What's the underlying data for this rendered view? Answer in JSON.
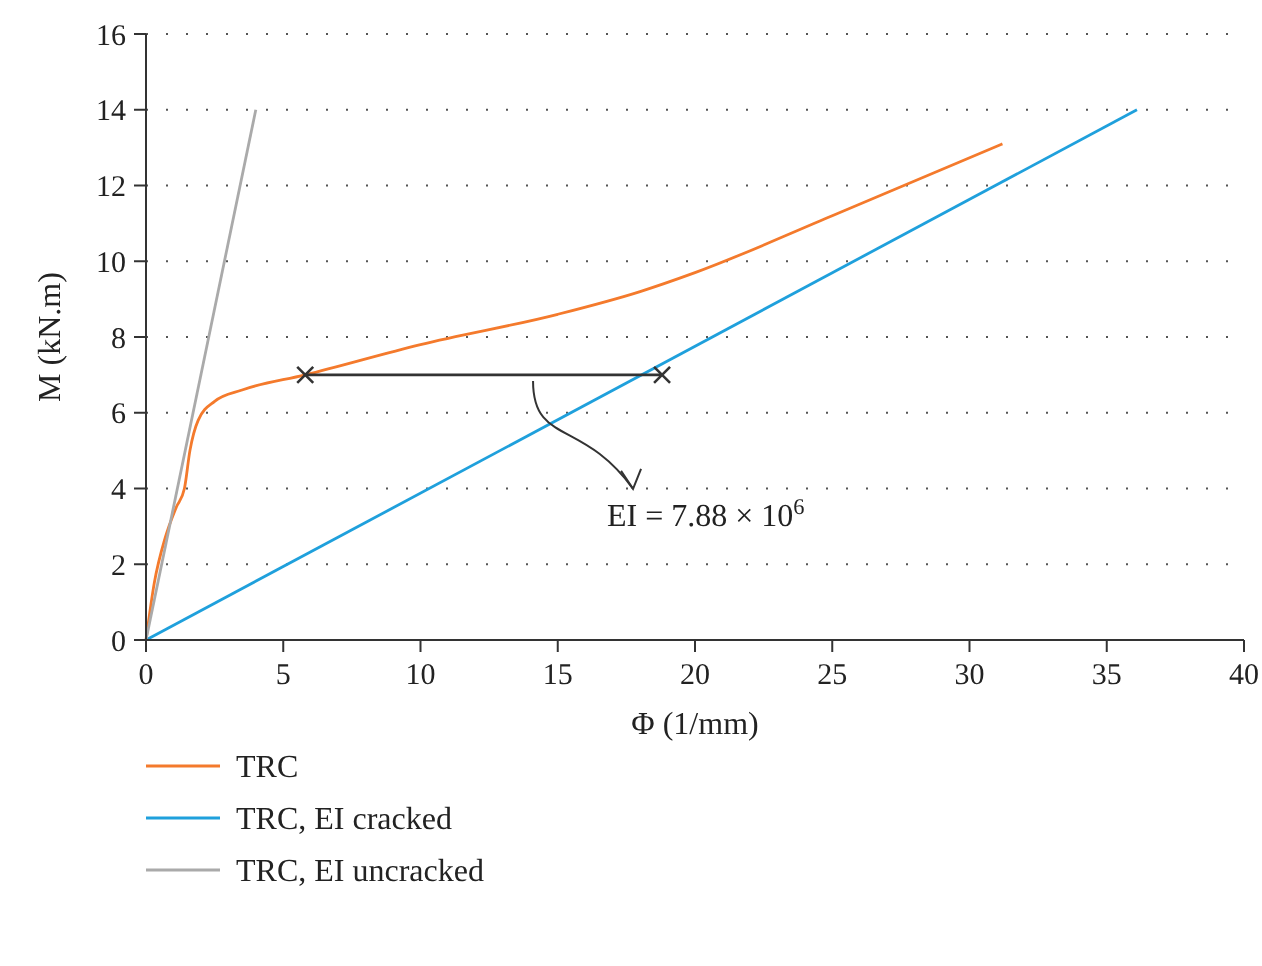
{
  "chart_data": {
    "type": "line",
    "xlabel": "Φ (1/mm)",
    "ylabel": "M (kN.m)",
    "xlim": [
      0,
      40
    ],
    "ylim": [
      0,
      16
    ],
    "xticks": [
      0,
      5,
      10,
      15,
      20,
      25,
      30,
      35,
      40
    ],
    "yticks": [
      0,
      2,
      4,
      6,
      8,
      10,
      12,
      14,
      16
    ],
    "grid": "y",
    "legend": "bottom",
    "marker": "none",
    "line_style": "solid",
    "series": [
      {
        "name": "TRC",
        "color": "#f47a2c",
        "x": [
          0,
          0.3,
          0.7,
          1.1,
          1.4,
          1.6,
          1.9,
          2.5,
          3.5,
          5.8,
          10,
          15,
          18,
          20,
          25,
          31.2
        ],
        "values": [
          0,
          1.5,
          2.7,
          3.5,
          4.0,
          5.0,
          5.8,
          6.3,
          6.6,
          7.0,
          7.8,
          8.6,
          9.2,
          9.7,
          11.2,
          13.1
        ]
      },
      {
        "name": "TRC, EI cracked",
        "color": "#1fa0dc",
        "x": [
          0,
          36.1
        ],
        "values": [
          0,
          14
        ]
      },
      {
        "name": "TRC, EI uncracked",
        "color": "#aaaaaa",
        "x": [
          0,
          4.0
        ],
        "values": [
          0,
          14
        ]
      },
      {
        "color": "#333333",
        "marker": "cross",
        "x": [
          5.8,
          18.8
        ],
        "values": [
          7,
          7
        ]
      }
    ],
    "annotations": [
      {
        "text": "EI = 7.88 × 10$^{6}$",
        "x": 14.1,
        "y": 7
      }
    ]
  }
}
